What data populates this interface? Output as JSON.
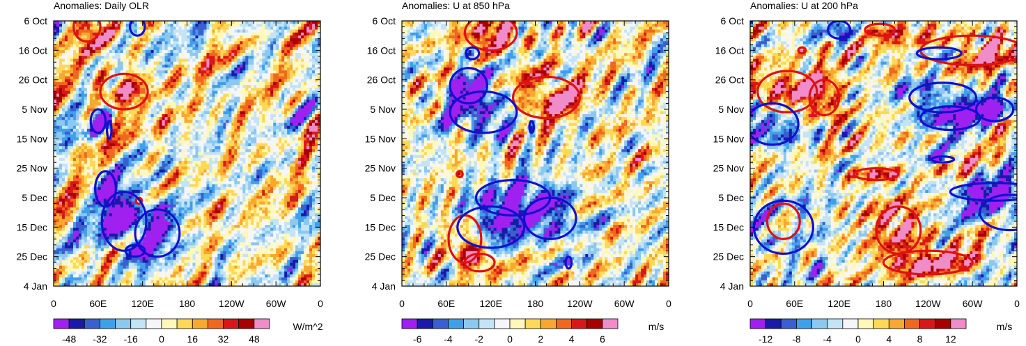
{
  "chart_data": [
    {
      "type": "heatmap",
      "title": "Anomalies: Daily OLR",
      "x_tick_labels": [
        "0",
        "60E",
        "120E",
        "180",
        "120W",
        "60W",
        "0"
      ],
      "x_ticks_deg": [
        0,
        60,
        120,
        180,
        240,
        300,
        360
      ],
      "xlim": [
        0,
        360
      ],
      "y_tick_labels": [
        "6 Oct",
        "16 Oct",
        "26 Oct",
        "5 Nov",
        "15 Nov",
        "25 Nov",
        "5 Dec",
        "15 Dec",
        "25 Dec",
        "4 Jan"
      ],
      "y_ticks_day": [
        0,
        10,
        20,
        30,
        40,
        50,
        60,
        70,
        80,
        90
      ],
      "ylim_days": [
        0,
        90
      ],
      "colorbar": {
        "labels": [
          "-48",
          "-32",
          "-16",
          "0",
          "16",
          "32",
          "48"
        ],
        "units": "W/m^2"
      },
      "seed": 11
    },
    {
      "type": "heatmap",
      "title": "Anomalies: U at 850 hPa",
      "x_tick_labels": [
        "0",
        "60E",
        "120E",
        "180",
        "120W",
        "60W",
        "0"
      ],
      "x_ticks_deg": [
        0,
        60,
        120,
        180,
        240,
        300,
        360
      ],
      "xlim": [
        0,
        360
      ],
      "y_tick_labels": [
        "6 Oct",
        "16 Oct",
        "26 Oct",
        "5 Nov",
        "15 Nov",
        "25 Nov",
        "5 Dec",
        "15 Dec",
        "25 Dec",
        "4 Jan"
      ],
      "y_ticks_day": [
        0,
        10,
        20,
        30,
        40,
        50,
        60,
        70,
        80,
        90
      ],
      "ylim_days": [
        0,
        90
      ],
      "colorbar": {
        "labels": [
          "-6",
          "-4",
          "-2",
          "0",
          "2",
          "4",
          "6"
        ],
        "units": "m/s"
      },
      "seed": 29
    },
    {
      "type": "heatmap",
      "title": "Anomalies: U at 200 hPa",
      "x_tick_labels": [
        "0",
        "60E",
        "120E",
        "180",
        "120W",
        "60W",
        "0"
      ],
      "x_ticks_deg": [
        0,
        60,
        120,
        180,
        240,
        300,
        360
      ],
      "xlim": [
        0,
        360
      ],
      "y_tick_labels": [
        "6 Oct",
        "16 Oct",
        "26 Oct",
        "5 Nov",
        "15 Nov",
        "25 Nov",
        "5 Dec",
        "15 Dec",
        "25 Dec",
        "4 Jan"
      ],
      "y_ticks_day": [
        0,
        10,
        20,
        30,
        40,
        50,
        60,
        70,
        80,
        90
      ],
      "ylim_days": [
        0,
        90
      ],
      "colorbar": {
        "labels": [
          "-12",
          "-8",
          "-4",
          "0",
          "4",
          "8",
          "12"
        ],
        "units": "m/s"
      },
      "seed": 53
    }
  ],
  "palette": [
    "#a020f0",
    "#1a1aa8",
    "#3a5fd0",
    "#3fa0ea",
    "#8cc8f0",
    "#c4e4f6",
    "#f6f6fa",
    "#fff8b8",
    "#ffd858",
    "#f8a830",
    "#f06820",
    "#d81818",
    "#a80000",
    "#f08cc8"
  ],
  "contour_colors": {
    "positive": "#e01010",
    "negative": "#1010d0"
  }
}
